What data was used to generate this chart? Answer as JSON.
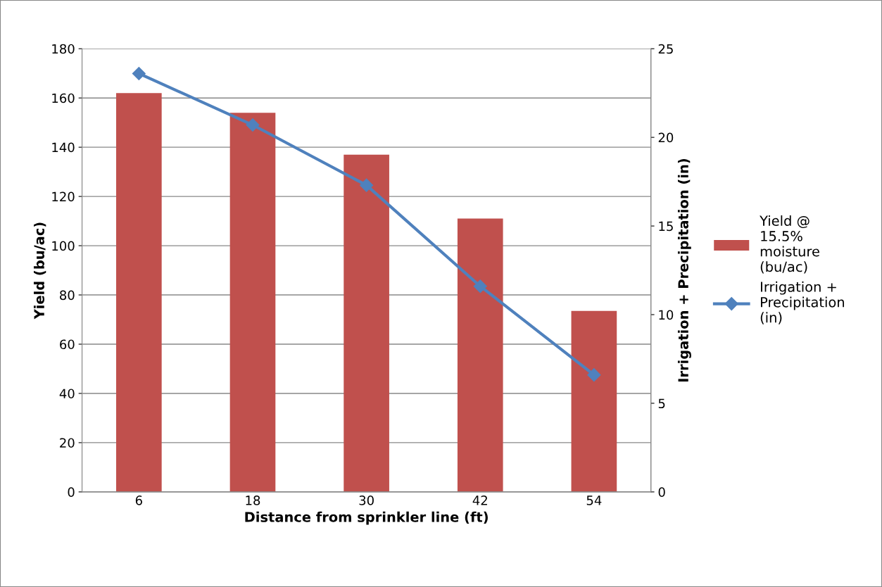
{
  "chart_data": {
    "type": "bar",
    "xlabel": "Distance from sprinkler line (ft)",
    "ylabel": "Yield (bu/ac)",
    "y2label": "Irrigation + Precipitation (in)",
    "categories": [
      "6",
      "18",
      "30",
      "42",
      "54"
    ],
    "series": [
      {
        "name": "Yield @ 15.5% moisture (bu/ac)",
        "color": "#c0504d",
        "values": [
          162,
          154,
          137,
          111,
          73.5
        ]
      },
      {
        "name": "Irrigation + Precipitation (in)",
        "type": "line",
        "axis": "y2",
        "marker": "diamond",
        "color": "#4f81bd",
        "values": [
          23.6,
          20.7,
          17.3,
          11.6,
          6.6
        ]
      }
    ],
    "ylim": [
      0,
      180
    ],
    "yticks": [
      0,
      20,
      40,
      60,
      80,
      100,
      120,
      140,
      160,
      180
    ],
    "y2lim": [
      0,
      25
    ],
    "y2ticks": [
      0,
      5,
      10,
      15,
      20,
      25
    ],
    "grid": "y",
    "legend": "right"
  }
}
